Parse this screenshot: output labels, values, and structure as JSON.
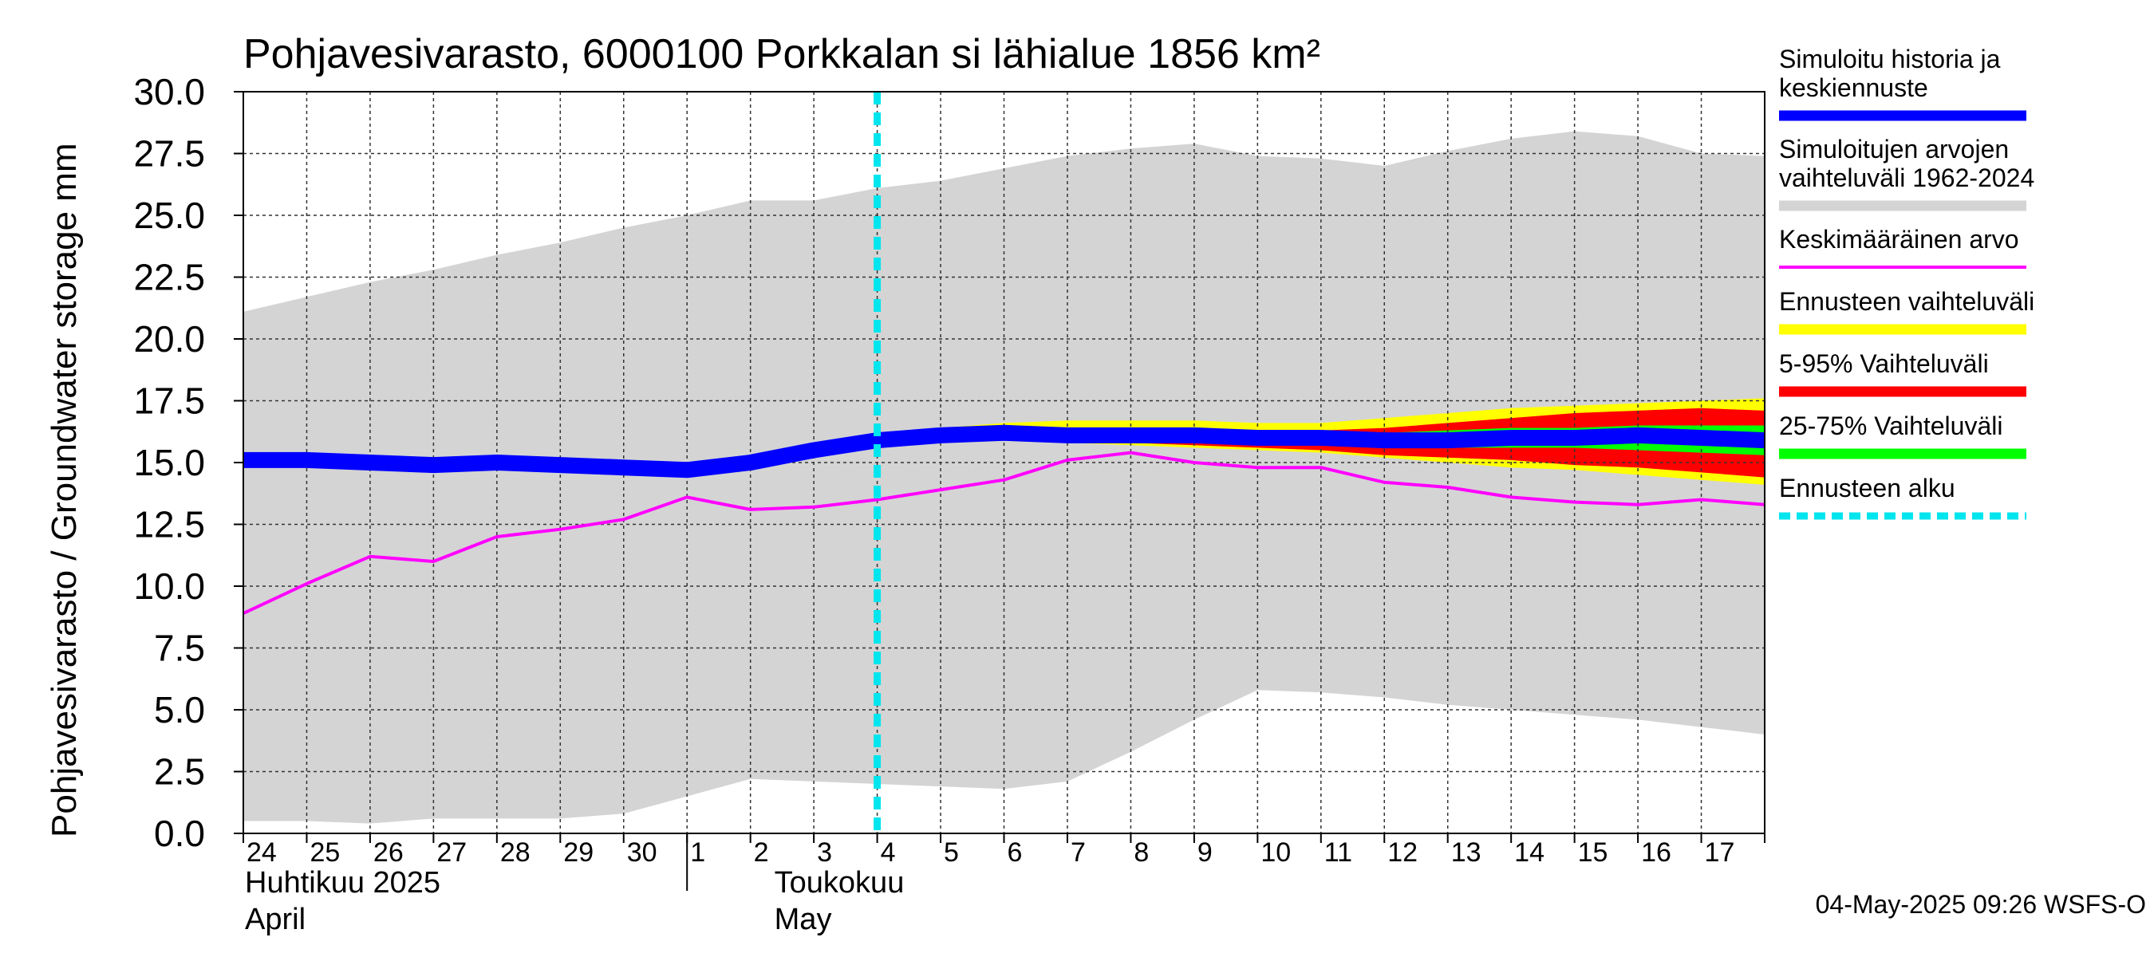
{
  "chart_data": {
    "type": "area",
    "title": "Pohjavesivarasto, 6000100 Porkkalan si lähialue 1856 km²",
    "ylabel": "Pohjavesivarasto / Groundwater storage   mm",
    "ylim": [
      0,
      30
    ],
    "yticks": [
      "0.0",
      "2.5",
      "5.0",
      "7.5",
      "10.0",
      "12.5",
      "15.0",
      "17.5",
      "20.0",
      "22.5",
      "25.0",
      "27.5",
      "30.0"
    ],
    "grid": true,
    "xlim": [
      "2025-04-24",
      "2025-05-18"
    ],
    "x_tick_labels": [
      "24",
      "25",
      "26",
      "27",
      "28",
      "29",
      "30",
      "1",
      "2",
      "3",
      "4",
      "5",
      "6",
      "7",
      "8",
      "9",
      "10",
      "11",
      "12",
      "13",
      "14",
      "15",
      "16",
      "17"
    ],
    "month_labels": [
      {
        "line1": "Huhtikuu  2025",
        "line2": "April",
        "date": "2025-04-24"
      },
      {
        "line1": "Toukokuu",
        "line2": "May",
        "date": "2025-05-01"
      }
    ],
    "month_separator_date": "2025-05-01",
    "forecast_start": "2025-05-04",
    "dates": [
      "2025-04-24",
      "2025-04-25",
      "2025-04-26",
      "2025-04-27",
      "2025-04-28",
      "2025-04-29",
      "2025-04-30",
      "2025-05-01",
      "2025-05-02",
      "2025-05-03",
      "2025-05-04",
      "2025-05-05",
      "2025-05-06",
      "2025-05-07",
      "2025-05-08",
      "2025-05-09",
      "2025-05-10",
      "2025-05-11",
      "2025-05-12",
      "2025-05-13",
      "2025-05-14",
      "2025-05-15",
      "2025-05-16",
      "2025-05-17",
      "2025-05-18"
    ],
    "series": [
      {
        "name": "Simuloitujen arvojen vaihteluväli 1962-2024",
        "kind": "band",
        "color": "#d4d4d4",
        "lower": [
          0.5,
          0.5,
          0.4,
          0.6,
          0.6,
          0.6,
          0.8,
          1.5,
          2.2,
          2.1,
          2.0,
          1.9,
          1.8,
          2.1,
          3.3,
          4.6,
          5.8,
          5.7,
          5.5,
          5.2,
          5.0,
          4.8,
          4.6,
          4.3,
          4.0
        ],
        "upper": [
          21.1,
          21.7,
          22.3,
          22.8,
          23.4,
          23.9,
          24.5,
          25.0,
          25.6,
          25.6,
          26.1,
          26.4,
          26.9,
          27.4,
          27.7,
          27.9,
          27.4,
          27.3,
          27.0,
          27.6,
          28.1,
          28.4,
          28.2,
          27.5,
          27.4
        ]
      },
      {
        "name": "Ennusteen vaihteluväli",
        "kind": "band",
        "color": "#ffff00",
        "start_date": "2025-05-04",
        "lower": [
          15.9,
          16.0,
          16.0,
          15.8,
          15.7,
          15.6,
          15.5,
          15.4,
          15.2,
          15.0,
          14.8,
          14.7,
          14.5,
          14.3,
          14.1
        ],
        "upper": [
          16.1,
          16.4,
          16.6,
          16.7,
          16.7,
          16.7,
          16.6,
          16.6,
          16.8,
          17.0,
          17.2,
          17.3,
          17.4,
          17.5,
          17.6
        ]
      },
      {
        "name": "5-95% Vaihteluväli",
        "kind": "band",
        "color": "#ff0000",
        "start_date": "2025-05-04",
        "lower": [
          15.9,
          16.0,
          16.0,
          15.9,
          15.8,
          15.7,
          15.6,
          15.5,
          15.3,
          15.2,
          15.1,
          14.9,
          14.8,
          14.6,
          14.4
        ],
        "upper": [
          16.1,
          16.3,
          16.4,
          16.4,
          16.4,
          16.4,
          16.3,
          16.3,
          16.4,
          16.6,
          16.8,
          17.0,
          17.1,
          17.2,
          17.1
        ]
      },
      {
        "name": "25-75% Vaihteluväli",
        "kind": "band",
        "color": "#00ff00",
        "start_date": "2025-05-04",
        "lower": [
          15.9,
          16.0,
          16.1,
          16.0,
          15.9,
          15.9,
          15.8,
          15.7,
          15.6,
          15.6,
          15.6,
          15.6,
          15.5,
          15.4,
          15.3
        ],
        "upper": [
          16.0,
          16.2,
          16.3,
          16.3,
          16.3,
          16.2,
          16.2,
          16.2,
          16.2,
          16.3,
          16.4,
          16.4,
          16.5,
          16.5,
          16.5
        ]
      },
      {
        "name": "Simuloitu historia ja keskiennuste",
        "kind": "line",
        "color": "#0000ff",
        "values": [
          15.1,
          15.1,
          15.0,
          14.9,
          15.0,
          14.9,
          14.8,
          14.7,
          15.0,
          15.5,
          15.9,
          16.1,
          16.2,
          16.1,
          16.1,
          16.1,
          16.0,
          16.0,
          15.9,
          15.9,
          16.0,
          16.0,
          16.1,
          16.0,
          15.9
        ]
      },
      {
        "name": "Keskimääräinen arvo",
        "kind": "line",
        "color": "#ff00ff",
        "values": [
          8.9,
          10.1,
          11.2,
          11.0,
          12.0,
          12.3,
          12.7,
          13.6,
          13.1,
          13.2,
          13.5,
          13.9,
          14.3,
          15.1,
          15.4,
          15.0,
          14.8,
          14.8,
          14.2,
          14.0,
          13.6,
          13.4,
          13.3,
          13.5,
          13.3
        ]
      }
    ],
    "legend": {
      "placement": "right",
      "entries": [
        {
          "label_lines": [
            "Simuloitu historia ja",
            "keskiennuste"
          ],
          "color": "#0000ff",
          "style": "thick"
        },
        {
          "label_lines": [
            "Simuloitujen arvojen",
            "vaihteluväli 1962-2024"
          ],
          "color": "#d4d4d4",
          "style": "thick"
        },
        {
          "label_lines": [
            "Keskimääräinen arvo"
          ],
          "color": "#ff00ff",
          "style": "thin"
        },
        {
          "label_lines": [
            "Ennusteen vaihteluväli"
          ],
          "color": "#ffff00",
          "style": "thick"
        },
        {
          "label_lines": [
            "5-95% Vaihteluväli"
          ],
          "color": "#ff0000",
          "style": "thick"
        },
        {
          "label_lines": [
            "25-75% Vaihteluväli"
          ],
          "color": "#00ff00",
          "style": "thick"
        },
        {
          "label_lines": [
            "Ennusteen alku"
          ],
          "color": "#00e5ee",
          "style": "dashed"
        }
      ]
    },
    "forecast_line_color": "#00e5ee",
    "footer": "04-May-2025 09:26 WSFS-O"
  }
}
